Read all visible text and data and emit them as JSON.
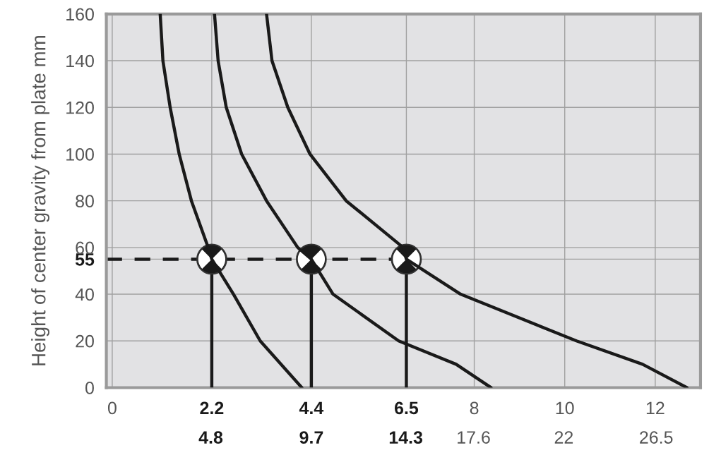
{
  "chart_data": {
    "type": "line",
    "ylabel": "Height of center gravity from plate mm",
    "xlim": [
      -0.13,
      13.0
    ],
    "ylim": [
      0,
      160
    ],
    "xticks": [
      0,
      2.2,
      4.4,
      6.5,
      8,
      10,
      12
    ],
    "x2lim": [
      -0.29,
      28.66
    ],
    "x2ticks": [
      4.8,
      9.7,
      14.3,
      17.6,
      22,
      26.5
    ],
    "yticks": [
      0,
      20,
      40,
      55,
      60,
      80,
      100,
      120,
      140,
      160
    ],
    "grid": true,
    "line_style": "solid",
    "series": [
      {
        "color": "#1a1a1a",
        "x": [
          1.06,
          1.12,
          1.28,
          1.48,
          1.75,
          2.12,
          2.2,
          2.68,
          3.27,
          4.19
        ],
        "values": [
          160,
          140,
          120,
          100,
          80,
          60,
          55,
          40,
          20,
          0
        ]
      },
      {
        "color": "#1a1a1a",
        "x": [
          2.26,
          2.34,
          2.52,
          2.86,
          3.41,
          4.1,
          4.4,
          4.88,
          6.33,
          7.6,
          8.37
        ],
        "values": [
          160,
          140,
          120,
          100,
          80,
          60,
          55,
          40,
          20,
          10,
          0
        ]
      },
      {
        "color": "#1a1a1a",
        "x": [
          3.41,
          3.53,
          3.88,
          4.37,
          5.17,
          6.43,
          6.5,
          7.7,
          10.26,
          11.72,
          12.7
        ],
        "values": [
          160,
          140,
          120,
          100,
          80,
          60,
          55,
          40,
          20,
          10,
          0
        ]
      },
      {
        "type": "lollipop",
        "color": "#1a1a1a",
        "marker": "circle",
        "x": [
          2.2,
          4.4,
          6.5
        ],
        "values": [
          55,
          55,
          55
        ]
      }
    ],
    "ref_lines": [
      {
        "axis": "y",
        "value": 55,
        "line_style": "dashed",
        "color": "#1a1a1a"
      }
    ]
  }
}
